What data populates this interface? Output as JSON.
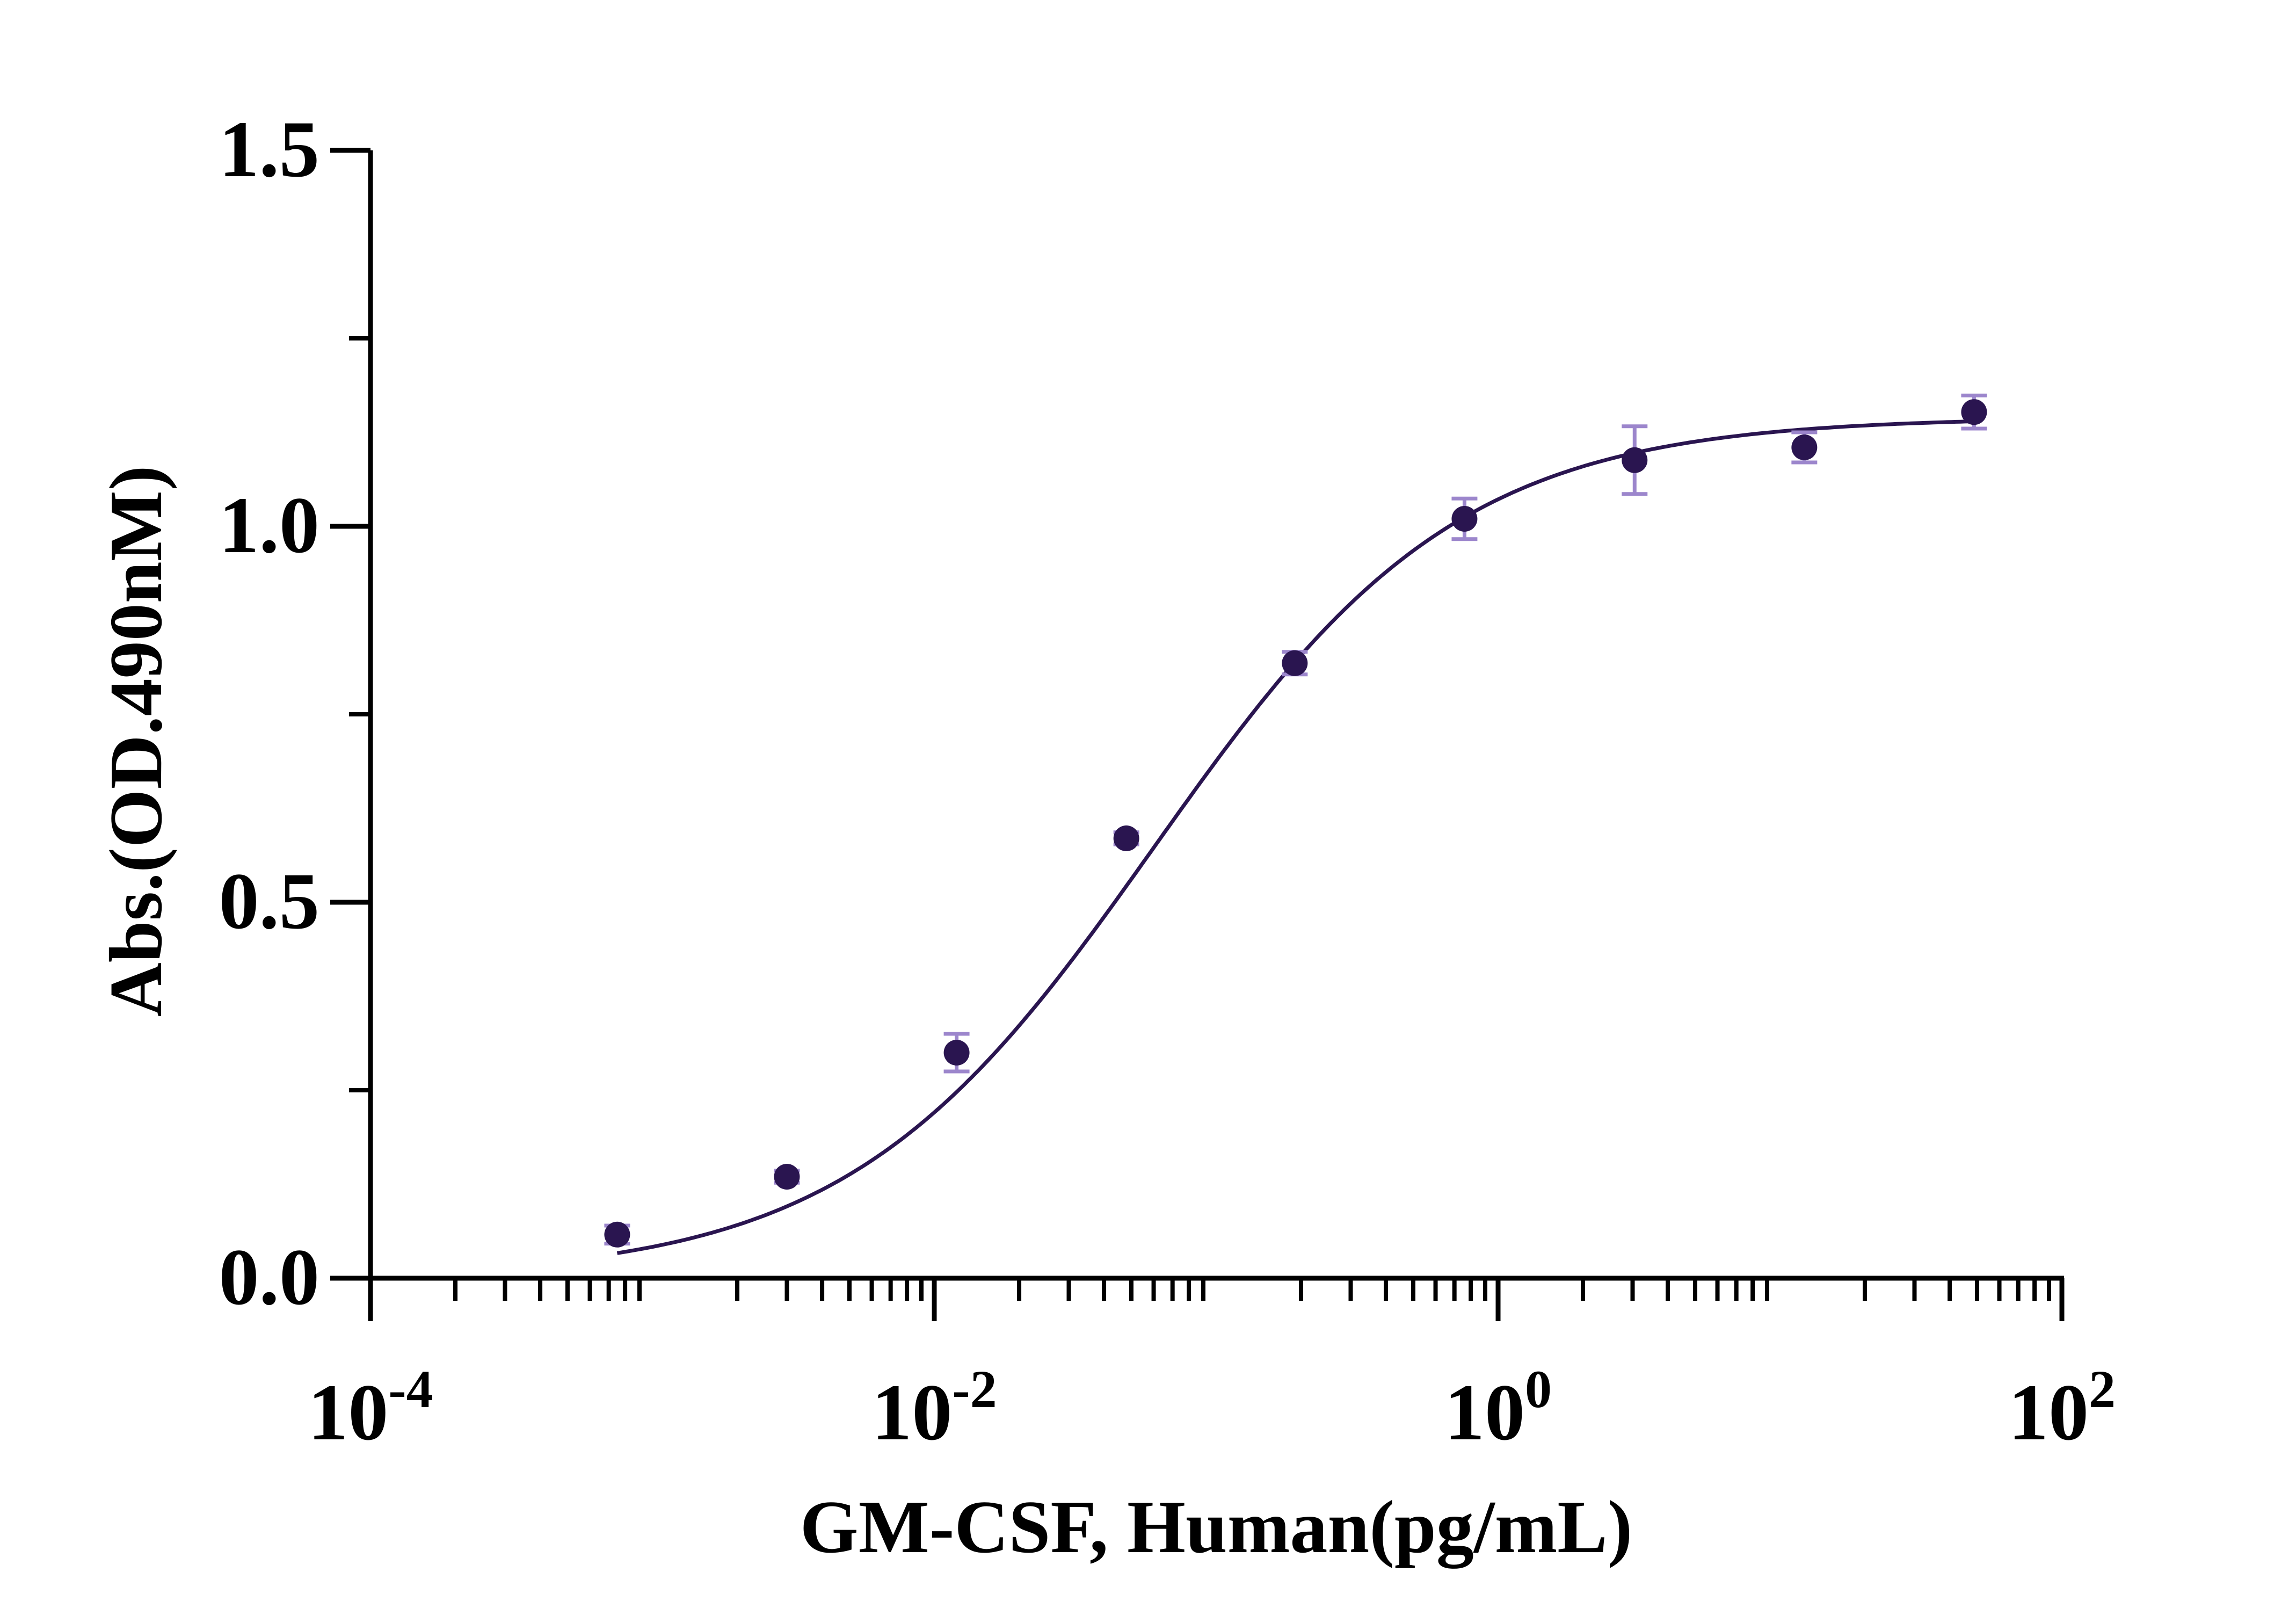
{
  "chart_data": {
    "type": "scatter",
    "title": "",
    "xlabel": "GM-CSF, Human(pg/mL)",
    "ylabel": "Abs.(OD.490nM)",
    "xscale": "log",
    "xlim": [
      0.0001,
      100
    ],
    "ylim": [
      0,
      1.5
    ],
    "x_ticks": [
      {
        "base": "10",
        "exp": "-4",
        "value": 0.0001
      },
      {
        "base": "10",
        "exp": "-2",
        "value": 0.01
      },
      {
        "base": "10",
        "exp": "0",
        "value": 1
      },
      {
        "base": "10",
        "exp": "2",
        "value": 100
      }
    ],
    "y_ticks": [
      {
        "label": "0.0",
        "value": 0
      },
      {
        "label": "0.5",
        "value": 0.5
      },
      {
        "label": "1.0",
        "value": 1.0
      },
      {
        "label": "1.5",
        "value": 1.5
      }
    ],
    "y_minor_ticks": [
      0.25,
      0.75,
      1.25
    ],
    "grid": false,
    "series": [
      {
        "x": [
          0.00075,
          0.003,
          0.012,
          0.048,
          0.19,
          0.76,
          3.05,
          12.2,
          48.8
        ],
        "y": [
          0.058,
          0.135,
          0.3,
          0.585,
          0.818,
          1.01,
          1.088,
          1.105,
          1.152
        ],
        "err": [
          0.012,
          0.008,
          0.025,
          0.008,
          0.015,
          0.027,
          0.045,
          0.02,
          0.022
        ]
      }
    ],
    "fit": {
      "model": "4PL",
      "bottom": 0.0,
      "top": 1.145,
      "ec50": 0.06,
      "hill": 0.8
    },
    "colors": {
      "marker": "#2a1550",
      "curve": "#2a1550",
      "errorbar": "#9c86cc",
      "axis": "#000000"
    }
  }
}
